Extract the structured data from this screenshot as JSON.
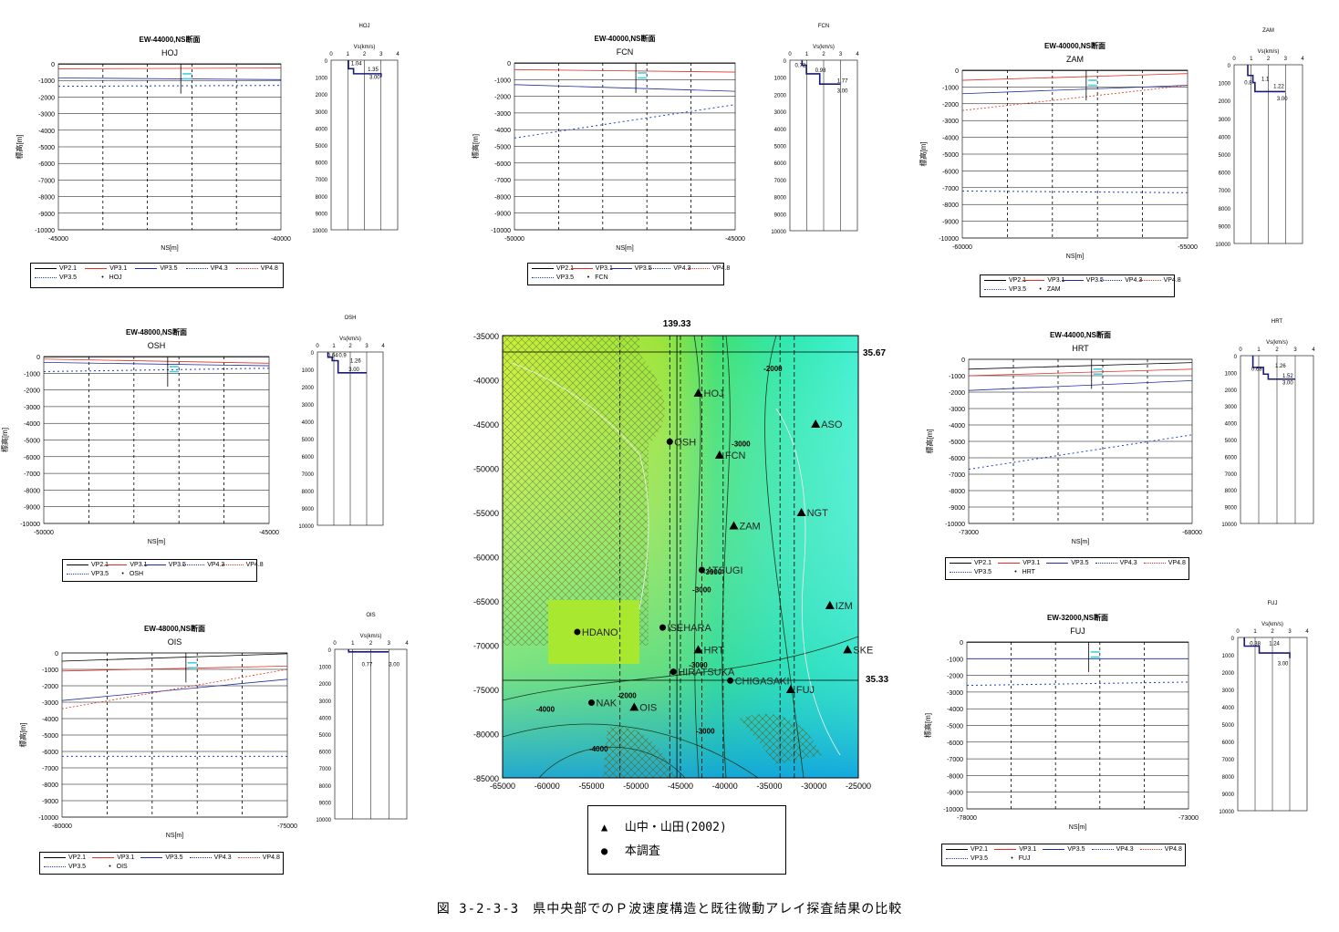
{
  "caption": "図 3-2-3-3　県中央部でのＰ波速度構造と既往微動アレイ探査結果の比較",
  "map": {
    "top_label": "139.33",
    "lat_top": "35.67",
    "lat_bottom": "35.33",
    "y_ticks": [
      "-35000",
      "-40000",
      "-45000",
      "-50000",
      "-55000",
      "-60000",
      "-65000",
      "-70000",
      "-75000",
      "-80000",
      "-85000"
    ],
    "x_ticks": [
      "-65000",
      "-60000",
      "-55000",
      "-50000",
      "-45000",
      "-40000",
      "-35000",
      "-30000",
      "-25000"
    ],
    "contour_labels": [
      "-2000",
      "-3000",
      "-3000",
      "-3000",
      "-2000",
      "-3000",
      "-3000",
      "-4000",
      "-4000"
    ],
    "triangle_sites": [
      "HOJ",
      "ASO",
      "FCN",
      "ZAM",
      "NGT",
      "IZM",
      "SKE",
      "HRT",
      "FUJ",
      "OIS"
    ],
    "circle_sites": [
      "OSH",
      "ATSUGI",
      "HDANO",
      "ISEHARA",
      "HIRATSUKA",
      "CHIGASAKI",
      "NAK"
    ],
    "legend": [
      {
        "symbol": "▲",
        "label": "山中・山田(2002)"
      },
      {
        "symbol": "●",
        "label": "本調査"
      }
    ]
  },
  "panels": [
    {
      "id": "hoj",
      "section_title": "EW-44000,NS断面",
      "station": "HOJ",
      "ylabel": "標高[m]",
      "xlabel": "NS[m]",
      "x_min": "-45000",
      "x_max": "-40000",
      "y_ticks": [
        "0",
        "-1000",
        "-2000",
        "-3000",
        "-4000",
        "-5000",
        "-6000",
        "-7000",
        "-8000",
        "-9000",
        "-10000"
      ],
      "vs_title": "HOJ",
      "vs_unit": "Vs(km/s)",
      "vs_x_ticks": [
        "0",
        "1",
        "2",
        "3",
        "4"
      ],
      "vs_depth_ticks": [
        "0",
        "1000",
        "2000",
        "3000",
        "4000",
        "5000",
        "6000",
        "7000",
        "8000",
        "9000",
        "10000"
      ],
      "vs_labels": [
        "1.04",
        "1.35",
        "3.00"
      ],
      "legend": [
        "VP2.1",
        "VP3.1",
        "VP3.5",
        "VP4.3",
        "VP4.8",
        "VP3.5",
        "HOJ"
      ]
    },
    {
      "id": "fcn",
      "section_title": "EW-40000,NS断面",
      "station": "FCN",
      "ylabel": "標高[m]",
      "xlabel": "NS[m]",
      "x_min": "-50000",
      "x_max": "-45000",
      "y_ticks": [
        "0",
        "-1000",
        "-2000",
        "-3000",
        "-4000",
        "-5000",
        "-6000",
        "-7000",
        "-8000",
        "-9000",
        "-10000"
      ],
      "vs_title": "FCN",
      "vs_unit": "Vs(km/s)",
      "vs_x_ticks": [
        "0",
        "1",
        "2",
        "3",
        "4"
      ],
      "vs_depth_ticks": [
        "0",
        "1000",
        "2000",
        "3000",
        "4000",
        "5000",
        "6000",
        "7000",
        "8000",
        "9000",
        "10000"
      ],
      "vs_labels": [
        "0.72",
        "0.98",
        "1.77",
        "3.00"
      ],
      "legend": [
        "VP2.1",
        "VP3.1",
        "VP3.5",
        "VP4.3",
        "VP4.8",
        "VP3.5",
        "FCN"
      ]
    },
    {
      "id": "zam",
      "section_title": "EW-40000,NS断面",
      "station": "ZAM",
      "ylabel": "標高[m]",
      "xlabel": "NS[m]",
      "x_min": "-60000",
      "x_max": "-55000",
      "y_ticks": [
        "0",
        "-1000",
        "-2000",
        "-3000",
        "-4000",
        "-5000",
        "-6000",
        "-7000",
        "-8000",
        "-9000",
        "-10000"
      ],
      "vs_title": "ZAM",
      "vs_unit": "Vs(km/s)",
      "vs_x_ticks": [
        "0",
        "1",
        "2",
        "3",
        "4"
      ],
      "vs_depth_ticks": [
        "0",
        "1000",
        "2000",
        "3000",
        "4000",
        "5000",
        "6000",
        "7000",
        "8000",
        "9000",
        "10000"
      ],
      "vs_labels": [
        "0.8",
        "1.1",
        "1.22",
        "3.00"
      ],
      "legend": [
        "VP2.1",
        "VP3.1",
        "VP3.5",
        "VP4.3",
        "VP4.8",
        "VP3.5",
        "ZAM"
      ]
    },
    {
      "id": "osh",
      "section_title": "EW-48000,NS断面",
      "station": "OSH",
      "ylabel": "標高[m]",
      "xlabel": "NS[m]",
      "x_min": "-50000",
      "x_max": "-45000",
      "y_ticks": [
        "0",
        "-1000",
        "-2000",
        "-3000",
        "-4000",
        "-5000",
        "-6000",
        "-7000",
        "-8000",
        "-9000",
        "-10000"
      ],
      "vs_title": "OSH",
      "vs_unit": "Vs(km/s)",
      "vs_x_ticks": [
        "0",
        "1",
        "2",
        "3",
        "4"
      ],
      "vs_depth_ticks": [
        "0",
        "1000",
        "2000",
        "3000",
        "4000",
        "5000",
        "6000",
        "7000",
        "8000",
        "9000",
        "10000"
      ],
      "vs_labels": [
        "0.64",
        "0.9",
        "1.26",
        "3.00"
      ],
      "legend": [
        "VP2.1",
        "VP3.1",
        "VP3.5",
        "VP4.3",
        "VP4.8",
        "VP3.5",
        "OSH"
      ]
    },
    {
      "id": "hrt",
      "section_title": "EW-44000,NS断面",
      "station": "HRT",
      "ylabel": "標高[m]",
      "xlabel": "NS[m]",
      "x_min": "-73000",
      "x_max": "-68000",
      "y_ticks": [
        "0",
        "-1000",
        "-2000",
        "-3000",
        "-4000",
        "-5000",
        "-6000",
        "-7000",
        "-8000",
        "-9000",
        "-10000"
      ],
      "vs_title": "HRT",
      "vs_unit": "Vs(km/s)",
      "vs_x_ticks": [
        "0",
        "1",
        "2",
        "3",
        "4"
      ],
      "vs_depth_ticks": [
        "0",
        "1000",
        "2000",
        "3000",
        "4000",
        "5000",
        "6000",
        "7000",
        "8000",
        "9000",
        "10000"
      ],
      "vs_labels": [
        "0.68",
        "1.26",
        "1.52",
        "3.00"
      ],
      "legend": [
        "VP2.1",
        "VP3.1",
        "VP3.5",
        "VP4.3",
        "VP4.8",
        "VP3.5",
        "HRT"
      ]
    },
    {
      "id": "ois",
      "section_title": "EW-48000,NS断面",
      "station": "OIS",
      "ylabel": "標高[m]",
      "xlabel": "NS[m]",
      "x_min": "-80000",
      "x_max": "-75000",
      "y_ticks": [
        "0",
        "-1000",
        "-2000",
        "-3000",
        "-4000",
        "-5000",
        "-6000",
        "-7000",
        "-8000",
        "-9000",
        "-10000"
      ],
      "vs_title": "OIS",
      "vs_unit": "Vs(km/s)",
      "vs_x_ticks": [
        "0",
        "1",
        "2",
        "3",
        "4"
      ],
      "vs_depth_ticks": [
        "0",
        "1000",
        "2000",
        "3000",
        "4000",
        "5000",
        "6000",
        "7000",
        "8000",
        "9000",
        "10000"
      ],
      "vs_labels": [
        "0.77",
        "3.00"
      ],
      "legend": [
        "VP2.1",
        "VP3.1",
        "VP3.5",
        "VP4.3",
        "VP4.8",
        "VP3.5",
        "OIS"
      ]
    },
    {
      "id": "fuj",
      "section_title": "EW-32000,NS断面",
      "station": "FUJ",
      "ylabel": "標高[m]",
      "xlabel": "NS[m]",
      "x_min": "-78000",
      "x_max": "-73000",
      "y_ticks": [
        "0",
        "-1000",
        "-2000",
        "-3000",
        "-4000",
        "-5000",
        "-6000",
        "-7000",
        "-8000",
        "-9000",
        "-10000"
      ],
      "vs_title": "FUJ",
      "vs_unit": "Vs(km/s)",
      "vs_x_ticks": [
        "0",
        "1",
        "2",
        "3",
        "4"
      ],
      "vs_depth_ticks": [
        "0",
        "1000",
        "2000",
        "3000",
        "4000",
        "5000",
        "6000",
        "7000",
        "8000",
        "9000",
        "10000"
      ],
      "vs_labels": [
        "0.38",
        "1.24",
        "3.00"
      ],
      "legend": [
        "VP2.1",
        "VP3.1",
        "VP3.5",
        "VP4.3",
        "VP4.8",
        "VP3.5",
        "FUJ"
      ]
    }
  ],
  "colors": {
    "vp21": "#000000",
    "vp31": "#e03020",
    "vp35": "#1f2f9f",
    "vp43": "#1f2f9f",
    "vp48": "#e03020",
    "vp35b": "#2040d0",
    "station": "#40d0e0"
  },
  "chart_data": [
    {
      "type": "line",
      "station": "HOJ",
      "x": [
        -45000,
        -40000
      ],
      "series": [
        {
          "name": "VP2.1",
          "values": [
            -20,
            -20
          ]
        },
        {
          "name": "VP3.1",
          "values": [
            -300,
            -250
          ]
        },
        {
          "name": "VP3.5",
          "values": [
            -850,
            -950
          ]
        },
        {
          "name": "VP3.5",
          "values": [
            -1350,
            -1300
          ]
        }
      ],
      "ylim": [
        -10000,
        0
      ]
    },
    {
      "type": "line",
      "station": "FCN",
      "x": [
        -50000,
        -45000
      ],
      "series": [
        {
          "name": "VP2.1",
          "values": [
            -20,
            -20
          ]
        },
        {
          "name": "VP3.1",
          "values": [
            -400,
            -550
          ]
        },
        {
          "name": "VP3.5",
          "values": [
            -1300,
            -1700
          ]
        },
        {
          "name": "VP3.5",
          "values": [
            -4500,
            -2500
          ]
        }
      ],
      "ylim": [
        -10000,
        0
      ]
    },
    {
      "type": "line",
      "station": "ZAM",
      "x": [
        -60000,
        -55000
      ],
      "series": [
        {
          "name": "VP2.1",
          "values": [
            -20,
            -20
          ]
        },
        {
          "name": "VP3.1",
          "values": [
            -600,
            -200
          ]
        },
        {
          "name": "VP3.5",
          "values": [
            -1400,
            -900
          ]
        },
        {
          "name": "VP4.8",
          "values": [
            -2400,
            -900
          ]
        },
        {
          "name": "VP3.5",
          "values": [
            -7200,
            -7300
          ]
        }
      ],
      "ylim": [
        -10000,
        0
      ]
    },
    {
      "type": "line",
      "station": "OSH",
      "x": [
        -50000,
        -45000
      ],
      "series": [
        {
          "name": "VP2.1",
          "values": [
            -20,
            -20
          ]
        },
        {
          "name": "VP3.1",
          "values": [
            -150,
            -400
          ]
        },
        {
          "name": "VP3.5",
          "values": [
            -350,
            -550
          ]
        },
        {
          "name": "VP3.5",
          "values": [
            -900,
            -700
          ]
        }
      ],
      "ylim": [
        -10000,
        0
      ]
    },
    {
      "type": "line",
      "station": "HRT",
      "x": [
        -73000,
        -68000
      ],
      "series": [
        {
          "name": "VP2.1",
          "values": [
            -600,
            -200
          ]
        },
        {
          "name": "VP3.1",
          "values": [
            -1000,
            -600
          ]
        },
        {
          "name": "VP3.5",
          "values": [
            -1900,
            -1300
          ]
        },
        {
          "name": "VP3.5",
          "values": [
            -6700,
            -4600
          ]
        }
      ],
      "ylim": [
        -10000,
        0
      ]
    },
    {
      "type": "line",
      "station": "OIS",
      "x": [
        -80000,
        -75000
      ],
      "series": [
        {
          "name": "VP2.1",
          "values": [
            -500,
            -50
          ]
        },
        {
          "name": "VP3.1",
          "values": [
            -1100,
            -800
          ]
        },
        {
          "name": "VP3.5",
          "values": [
            -2900,
            -1600
          ]
        },
        {
          "name": "VP4.8",
          "values": [
            -3400,
            -1000
          ]
        },
        {
          "name": "VP3.5",
          "values": [
            -6300,
            -6300
          ]
        }
      ],
      "ylim": [
        -10000,
        0
      ]
    },
    {
      "type": "line",
      "station": "FUJ",
      "x": [
        -78000,
        -73000
      ],
      "series": [
        {
          "name": "VP2.1",
          "values": [
            -20,
            -20
          ]
        },
        {
          "name": "VP3.5",
          "values": [
            -1000,
            -1000
          ]
        },
        {
          "name": "VP3.5",
          "values": [
            -2600,
            -2400
          ]
        }
      ],
      "ylim": [
        -10000,
        0
      ]
    }
  ]
}
